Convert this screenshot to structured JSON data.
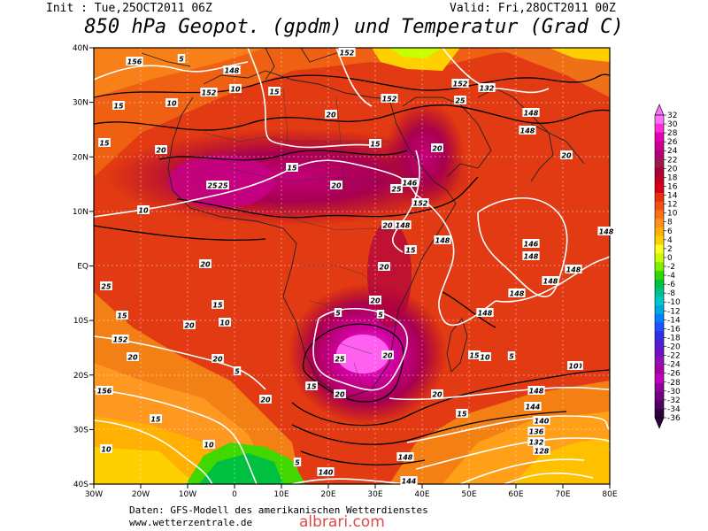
{
  "header": {
    "init": "Init : Tue,25OCT2011 06Z",
    "valid": "Valid: Fri,28OCT2011 00Z",
    "title": "850 hPa Geopot. (gpdm) und Temperatur (Grad C)"
  },
  "map": {
    "lon_ticks": [
      "30W",
      "20W",
      "10W",
      "0",
      "10E",
      "20E",
      "30E",
      "40E",
      "50E",
      "60E",
      "70E",
      "80E"
    ],
    "lat_ticks": [
      "40N",
      "30N",
      "20N",
      "10N",
      "EQ",
      "10S",
      "20S",
      "30S",
      "40S"
    ]
  },
  "colorbar": {
    "labels": [
      "32",
      "30",
      "28",
      "26",
      "24",
      "22",
      "20",
      "18",
      "16",
      "14",
      "12",
      "10",
      "8",
      "6",
      "4",
      "2",
      "0",
      "-2",
      "-4",
      "-6",
      "-8",
      "-10",
      "-12",
      "-14",
      "-16",
      "-18",
      "-20",
      "-22",
      "-24",
      "-26",
      "-28",
      "-30",
      "-32",
      "-34",
      "-36"
    ],
    "colors": [
      "#ff6eff",
      "#ff2cd9",
      "#e600b4",
      "#cc0090",
      "#b0007a",
      "#9a1a4a",
      "#a8003a",
      "#c00020",
      "#d80018",
      "#e63010",
      "#f05010",
      "#f87018",
      "#ff9020",
      "#ffb000",
      "#ffd000",
      "#ffff20",
      "#c8ff00",
      "#80f000",
      "#30d800",
      "#00c040",
      "#00c090",
      "#00c8c8",
      "#00a8e0",
      "#0080ff",
      "#2050ff",
      "#3030e0",
      "#5020d0",
      "#7010c0",
      "#9010b0",
      "#a800a0",
      "#c000c0",
      "#9000a0",
      "#700080",
      "#500060",
      "#300040"
    ]
  },
  "contour_labels": {
    "geopotential": [
      "156",
      "148",
      "152",
      "10",
      "15",
      "152",
      "132",
      "152",
      "152",
      "148",
      "148",
      "146",
      "152",
      "148",
      "148",
      "146",
      "148",
      "148",
      "148",
      "148",
      "152",
      "148",
      "156",
      "148",
      "148",
      "144",
      "140",
      "136",
      "132",
      "128",
      "148",
      "140",
      "144"
    ],
    "temperature": [
      "5",
      "10",
      "15",
      "20",
      "25",
      "20",
      "25",
      "25",
      "20",
      "25",
      "20",
      "15",
      "20",
      "15",
      "15",
      "10",
      "15",
      "10",
      "15",
      "20",
      "25",
      "20",
      "20",
      "20",
      "20",
      "15",
      "10",
      "5",
      "5",
      "10",
      "15",
      "10",
      "5",
      "10",
      "15",
      "20",
      "25",
      "20",
      "20",
      "20",
      "20",
      "20",
      "15",
      "5",
      "5",
      "10",
      "15"
    ]
  },
  "footer": {
    "source": "Daten: GFS-Modell des amerikanischen Wetterdienstes",
    "url": "www.wetterzentrale.de",
    "watermark": "albrari.com"
  }
}
